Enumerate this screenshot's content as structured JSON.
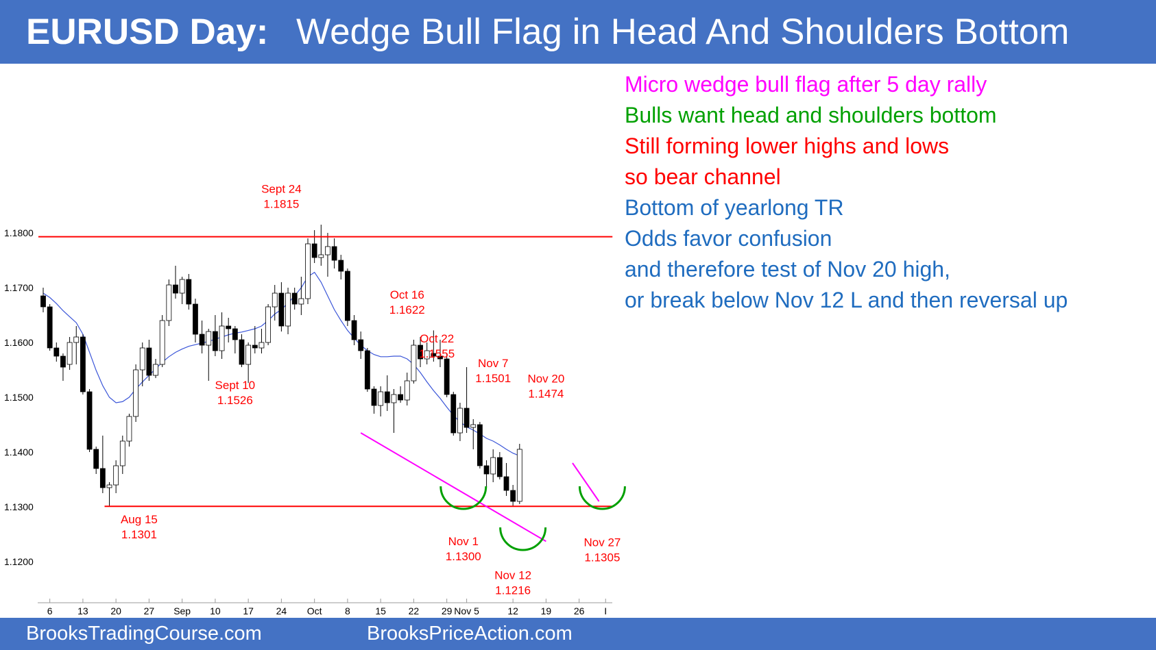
{
  "header": {
    "title_main": "EURUSD Day:",
    "title_sub": "Wedge Bull Flag in Head And Shoulders Bottom"
  },
  "notes": [
    {
      "text": "Micro wedge bull flag after 5 day rally",
      "color": "#ff00ff"
    },
    {
      "text": "Bulls want head and shoulders bottom",
      "color": "#00a000"
    },
    {
      "text": "Still forming lower highs and lows",
      "color": "#ff0000"
    },
    {
      "text": "so bear channel",
      "color": "#ff0000"
    },
    {
      "text": "Bottom of yearlong TR",
      "color": "#1f6cbf"
    },
    {
      "text": "Odds favor confusion",
      "color": "#1f6cbf"
    },
    {
      "text": "and therefore test of Nov 20 high,",
      "color": "#1f6cbf"
    },
    {
      "text": "or break below Nov 12 L and then reversal up",
      "color": "#1f6cbf"
    }
  ],
  "footer": {
    "site_a": "BrooksTradingCourse.com",
    "site_b": "BrooksPriceAction.com"
  },
  "colors": {
    "banner": "#4472c4",
    "support_resistance": "#ff0000",
    "wedge_line": "#ff00ff",
    "shoulder_arc": "#00a000",
    "moving_average": "#3a55d8",
    "annotation": "#ff0000"
  },
  "chart_data": {
    "type": "candlestick",
    "title": "EURUSD Day",
    "y_ticks": [
      {
        "value": 1.12,
        "label": "1.1200"
      },
      {
        "value": 1.13,
        "label": "1.1300"
      },
      {
        "value": 1.14,
        "label": "1.1400"
      },
      {
        "value": 1.15,
        "label": "1.1500"
      },
      {
        "value": 1.16,
        "label": "1.1600"
      },
      {
        "value": 1.17,
        "label": "1.1700"
      },
      {
        "value": 1.18,
        "label": "1.1800"
      }
    ],
    "ylim": [
      1.1145,
      1.1905
    ],
    "x_ticks": [
      {
        "index": 1,
        "label": "6"
      },
      {
        "index": 6,
        "label": "13"
      },
      {
        "index": 11,
        "label": "20"
      },
      {
        "index": 16,
        "label": "27"
      },
      {
        "index": 21,
        "label": "Sep"
      },
      {
        "index": 26,
        "label": "10"
      },
      {
        "index": 31,
        "label": "17"
      },
      {
        "index": 36,
        "label": "24"
      },
      {
        "index": 41,
        "label": "Oct"
      },
      {
        "index": 46,
        "label": "8"
      },
      {
        "index": 51,
        "label": "15"
      },
      {
        "index": 56,
        "label": "22"
      },
      {
        "index": 61,
        "label": "29"
      },
      {
        "index": 64,
        "label": "Nov 5"
      },
      {
        "index": 71,
        "label": "12"
      },
      {
        "index": 76,
        "label": "19"
      },
      {
        "index": 81,
        "label": "26"
      },
      {
        "index": 85,
        "label": "I"
      }
    ],
    "candles": [
      {
        "o": 1.1685,
        "h": 1.17,
        "l": 1.1655,
        "c": 1.1665
      },
      {
        "o": 1.1665,
        "h": 1.167,
        "l": 1.1585,
        "c": 1.159
      },
      {
        "o": 1.159,
        "h": 1.16,
        "l": 1.1565,
        "c": 1.1575
      },
      {
        "o": 1.1575,
        "h": 1.158,
        "l": 1.153,
        "c": 1.1555
      },
      {
        "o": 1.156,
        "h": 1.161,
        "l": 1.155,
        "c": 1.16
      },
      {
        "o": 1.16,
        "h": 1.163,
        "l": 1.156,
        "c": 1.161
      },
      {
        "o": 1.161,
        "h": 1.1615,
        "l": 1.1505,
        "c": 1.151
      },
      {
        "o": 1.151,
        "h": 1.1515,
        "l": 1.14,
        "c": 1.1405
      },
      {
        "o": 1.1405,
        "h": 1.141,
        "l": 1.136,
        "c": 1.137
      },
      {
        "o": 1.137,
        "h": 1.143,
        "l": 1.1325,
        "c": 1.1335
      },
      {
        "o": 1.1335,
        "h": 1.1345,
        "l": 1.1301,
        "c": 1.134
      },
      {
        "o": 1.134,
        "h": 1.1385,
        "l": 1.1325,
        "c": 1.1375
      },
      {
        "o": 1.1375,
        "h": 1.143,
        "l": 1.136,
        "c": 1.142
      },
      {
        "o": 1.142,
        "h": 1.147,
        "l": 1.141,
        "c": 1.1465
      },
      {
        "o": 1.1465,
        "h": 1.156,
        "l": 1.1455,
        "c": 1.155
      },
      {
        "o": 1.155,
        "h": 1.16,
        "l": 1.152,
        "c": 1.159
      },
      {
        "o": 1.159,
        "h": 1.1605,
        "l": 1.153,
        "c": 1.154
      },
      {
        "o": 1.154,
        "h": 1.157,
        "l": 1.1535,
        "c": 1.156
      },
      {
        "o": 1.156,
        "h": 1.165,
        "l": 1.1555,
        "c": 1.164
      },
      {
        "o": 1.164,
        "h": 1.1715,
        "l": 1.163,
        "c": 1.1705
      },
      {
        "o": 1.1705,
        "h": 1.174,
        "l": 1.168,
        "c": 1.169
      },
      {
        "o": 1.169,
        "h": 1.172,
        "l": 1.167,
        "c": 1.1715
      },
      {
        "o": 1.1715,
        "h": 1.1725,
        "l": 1.166,
        "c": 1.167
      },
      {
        "o": 1.167,
        "h": 1.168,
        "l": 1.16,
        "c": 1.1615
      },
      {
        "o": 1.1615,
        "h": 1.164,
        "l": 1.158,
        "c": 1.1595
      },
      {
        "o": 1.1595,
        "h": 1.1625,
        "l": 1.153,
        "c": 1.162
      },
      {
        "o": 1.162,
        "h": 1.165,
        "l": 1.1575,
        "c": 1.1585
      },
      {
        "o": 1.1585,
        "h": 1.1655,
        "l": 1.157,
        "c": 1.163
      },
      {
        "o": 1.163,
        "h": 1.1645,
        "l": 1.16,
        "c": 1.1625
      },
      {
        "o": 1.1625,
        "h": 1.163,
        "l": 1.158,
        "c": 1.1605
      },
      {
        "o": 1.1605,
        "h": 1.1615,
        "l": 1.1555,
        "c": 1.156
      },
      {
        "o": 1.156,
        "h": 1.16,
        "l": 1.1526,
        "c": 1.1595
      },
      {
        "o": 1.1595,
        "h": 1.163,
        "l": 1.158,
        "c": 1.159
      },
      {
        "o": 1.159,
        "h": 1.1625,
        "l": 1.158,
        "c": 1.16
      },
      {
        "o": 1.16,
        "h": 1.167,
        "l": 1.1595,
        "c": 1.1665
      },
      {
        "o": 1.1665,
        "h": 1.1705,
        "l": 1.164,
        "c": 1.169
      },
      {
        "o": 1.169,
        "h": 1.171,
        "l": 1.162,
        "c": 1.163
      },
      {
        "o": 1.163,
        "h": 1.17,
        "l": 1.1615,
        "c": 1.169
      },
      {
        "o": 1.169,
        "h": 1.17,
        "l": 1.166,
        "c": 1.167
      },
      {
        "o": 1.167,
        "h": 1.172,
        "l": 1.165,
        "c": 1.168
      },
      {
        "o": 1.168,
        "h": 1.179,
        "l": 1.167,
        "c": 1.178
      },
      {
        "o": 1.178,
        "h": 1.1805,
        "l": 1.1745,
        "c": 1.1755
      },
      {
        "o": 1.1755,
        "h": 1.1815,
        "l": 1.174,
        "c": 1.176
      },
      {
        "o": 1.176,
        "h": 1.18,
        "l": 1.172,
        "c": 1.1775
      },
      {
        "o": 1.1775,
        "h": 1.179,
        "l": 1.1735,
        "c": 1.175
      },
      {
        "o": 1.175,
        "h": 1.176,
        "l": 1.1715,
        "c": 1.173
      },
      {
        "o": 1.173,
        "h": 1.1735,
        "l": 1.163,
        "c": 1.164
      },
      {
        "o": 1.164,
        "h": 1.165,
        "l": 1.1595,
        "c": 1.1605
      },
      {
        "o": 1.1605,
        "h": 1.162,
        "l": 1.157,
        "c": 1.1585
      },
      {
        "o": 1.1585,
        "h": 1.159,
        "l": 1.151,
        "c": 1.1515
      },
      {
        "o": 1.1515,
        "h": 1.152,
        "l": 1.147,
        "c": 1.1485
      },
      {
        "o": 1.1485,
        "h": 1.152,
        "l": 1.1465,
        "c": 1.151
      },
      {
        "o": 1.151,
        "h": 1.154,
        "l": 1.1475,
        "c": 1.149
      },
      {
        "o": 1.149,
        "h": 1.1515,
        "l": 1.1435,
        "c": 1.1505
      },
      {
        "o": 1.1505,
        "h": 1.152,
        "l": 1.149,
        "c": 1.1495
      },
      {
        "o": 1.1495,
        "h": 1.1545,
        "l": 1.1485,
        "c": 1.153
      },
      {
        "o": 1.153,
        "h": 1.1605,
        "l": 1.1525,
        "c": 1.1595
      },
      {
        "o": 1.1595,
        "h": 1.161,
        "l": 1.1555,
        "c": 1.157
      },
      {
        "o": 1.157,
        "h": 1.16,
        "l": 1.156,
        "c": 1.1585
      },
      {
        "o": 1.158,
        "h": 1.1622,
        "l": 1.1565,
        "c": 1.1575
      },
      {
        "o": 1.1575,
        "h": 1.1605,
        "l": 1.1555,
        "c": 1.157
      },
      {
        "o": 1.157,
        "h": 1.158,
        "l": 1.15,
        "c": 1.1505
      },
      {
        "o": 1.1505,
        "h": 1.151,
        "l": 1.143,
        "c": 1.1435
      },
      {
        "o": 1.1435,
        "h": 1.149,
        "l": 1.142,
        "c": 1.148
      },
      {
        "o": 1.148,
        "h": 1.1555,
        "l": 1.1435,
        "c": 1.1445
      },
      {
        "o": 1.1445,
        "h": 1.146,
        "l": 1.1405,
        "c": 1.145
      },
      {
        "o": 1.145,
        "h": 1.1455,
        "l": 1.137,
        "c": 1.1375
      },
      {
        "o": 1.1375,
        "h": 1.1385,
        "l": 1.1335,
        "c": 1.136
      },
      {
        "o": 1.136,
        "h": 1.1405,
        "l": 1.1345,
        "c": 1.139
      },
      {
        "o": 1.139,
        "h": 1.14,
        "l": 1.135,
        "c": 1.1355
      },
      {
        "o": 1.1355,
        "h": 1.138,
        "l": 1.132,
        "c": 1.133
      },
      {
        "o": 1.133,
        "h": 1.134,
        "l": 1.13,
        "c": 1.131
      },
      {
        "o": 1.131,
        "h": 1.1415,
        "l": 1.1305,
        "c": 1.1405
      }
    ],
    "moving_average": [
      1.169,
      1.1682,
      1.1671,
      1.1658,
      1.1647,
      1.1636,
      1.1615,
      1.1582,
      1.1549,
      1.1521,
      1.15,
      1.149,
      1.1492,
      1.15,
      1.1515,
      1.1528,
      1.154,
      1.1552,
      1.1564,
      1.1574,
      1.1582,
      1.1588,
      1.1593,
      1.1596,
      1.1599,
      1.1602,
      1.1606,
      1.161,
      1.1614,
      1.1617,
      1.1619,
      1.1622,
      1.1625,
      1.163,
      1.164,
      1.1652,
      1.166,
      1.1672,
      1.1685,
      1.17,
      1.172,
      1.1728,
      1.171,
      1.1685,
      1.166,
      1.164,
      1.1622,
      1.1608,
      1.1595,
      1.1585,
      1.1578,
      1.1574,
      1.1574,
      1.1575,
      1.1575,
      1.157,
      1.156,
      1.1545,
      1.1528,
      1.1512,
      1.1498,
      1.1482,
      1.1467,
      1.1455,
      1.1446,
      1.144,
      1.1433,
      1.1425,
      1.142,
      1.1413,
      1.1405,
      1.1398,
      1.1393
    ],
    "horizontal_lines": [
      {
        "value": 1.1793,
        "x_from": 0,
        "x_to": 85
      },
      {
        "value": 1.1301,
        "x_from": 10,
        "x_to": 85
      }
    ],
    "wedge_lines": [
      {
        "from": [
          48,
          1.1435
        ],
        "to": [
          76,
          1.1237
        ]
      },
      {
        "from": [
          80,
          1.138
        ],
        "to": [
          84,
          1.131
        ]
      }
    ],
    "annotations": [
      {
        "lines": [
          "Sept 24",
          "1.1815"
        ],
        "index": 36,
        "value": 1.1873
      },
      {
        "lines": [
          "Sept 10",
          "1.1526"
        ],
        "index": 29,
        "value": 1.1515
      },
      {
        "lines": [
          "Aug 15",
          "1.1301"
        ],
        "index": 14.5,
        "value": 1.127
      },
      {
        "lines": [
          "Oct 16",
          "1.1622"
        ],
        "index": 55,
        "value": 1.168
      },
      {
        "lines": [
          "Oct 22",
          "1.1555"
        ],
        "index": 59.5,
        "value": 1.16
      },
      {
        "lines": [
          "Nov 7",
          "1.1501"
        ],
        "index": 68,
        "value": 1.1555
      },
      {
        "lines": [
          "Nov 20",
          "1.1474"
        ],
        "index": 76,
        "value": 1.1527
      },
      {
        "lines": [
          "Nov 1",
          "1.1300"
        ],
        "index": 63.5,
        "value": 1.123
      },
      {
        "lines": [
          "Nov 12",
          "1.1216"
        ],
        "index": 71,
        "value": 1.1168
      },
      {
        "lines": [
          "Nov 27",
          "1.1305"
        ],
        "index": 84.5,
        "value": 1.1228
      }
    ],
    "shoulder_arcs": [
      {
        "index": 63.5,
        "value": 1.133
      },
      {
        "index": 72.5,
        "value": 1.1255
      },
      {
        "index": 84.5,
        "value": 1.133
      }
    ]
  }
}
